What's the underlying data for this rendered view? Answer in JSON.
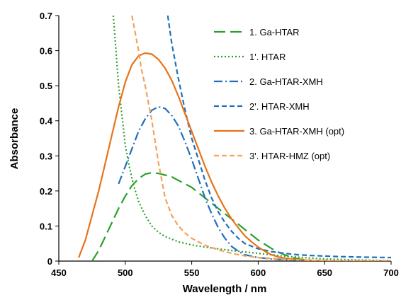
{
  "chart_data": {
    "type": "line",
    "title": "",
    "xlabel": "Wavelength / nm",
    "ylabel": "Absorbance",
    "xlim": [
      450,
      700
    ],
    "ylim": [
      0,
      0.7
    ],
    "x_ticks": [
      450,
      500,
      550,
      600,
      650,
      700
    ],
    "y_ticks": [
      0,
      0.1,
      0.2,
      0.3,
      0.4,
      0.5,
      0.6,
      0.7
    ],
    "x_tick_labels": [
      "450",
      "500",
      "550",
      "600",
      "650",
      "700"
    ],
    "y_tick_labels": [
      "0",
      "0.1",
      "0.2",
      "0.3",
      "0.4",
      "0.5",
      "0.6",
      "0.7"
    ],
    "grid": false,
    "legend_position": "top-right",
    "series": [
      {
        "name": "1. Ga-HTAR",
        "color": "#2ca02c",
        "style": "long-dash",
        "x": [
          475,
          480,
          485,
          490,
          495,
          500,
          505,
          510,
          515,
          520,
          525,
          530,
          535,
          540,
          545,
          550,
          555,
          560,
          565,
          570,
          575,
          580,
          585,
          590,
          595,
          600,
          605,
          610,
          615,
          620,
          625,
          630,
          640,
          650,
          660,
          670,
          680,
          690,
          700
        ],
        "y": [
          0.0,
          0.03,
          0.07,
          0.11,
          0.15,
          0.185,
          0.215,
          0.235,
          0.248,
          0.252,
          0.25,
          0.245,
          0.24,
          0.23,
          0.22,
          0.21,
          0.195,
          0.18,
          0.165,
          0.15,
          0.135,
          0.12,
          0.105,
          0.09,
          0.075,
          0.06,
          0.048,
          0.036,
          0.026,
          0.018,
          0.011,
          0.006,
          0.002,
          0.0,
          0.0,
          0.0,
          0.0,
          0.0,
          0.0
        ]
      },
      {
        "name": "1'. HTAR",
        "color": "#2ca02c",
        "style": "dotted",
        "x": [
          491,
          493,
          495,
          498,
          500,
          503,
          506,
          510,
          515,
          520,
          525,
          530,
          540,
          550,
          560,
          570,
          580,
          590,
          600,
          610,
          620,
          630,
          650,
          675,
          700
        ],
        "y": [
          0.7,
          0.6,
          0.5,
          0.4,
          0.33,
          0.27,
          0.22,
          0.17,
          0.13,
          0.1,
          0.082,
          0.07,
          0.055,
          0.046,
          0.04,
          0.035,
          0.03,
          0.026,
          0.022,
          0.018,
          0.014,
          0.011,
          0.006,
          0.003,
          0.001
        ]
      },
      {
        "name": "2. Ga-HTAR-XMH",
        "color": "#1f6fbf",
        "style": "dash-dot",
        "x": [
          495,
          500,
          505,
          510,
          515,
          520,
          525,
          530,
          535,
          540,
          545,
          550,
          555,
          560,
          565,
          570,
          575,
          580,
          585,
          590,
          600,
          610,
          620,
          630,
          640
        ],
        "y": [
          0.22,
          0.27,
          0.32,
          0.37,
          0.405,
          0.43,
          0.44,
          0.435,
          0.415,
          0.385,
          0.34,
          0.29,
          0.235,
          0.18,
          0.135,
          0.095,
          0.065,
          0.042,
          0.028,
          0.018,
          0.01,
          0.006,
          0.004,
          0.002,
          0.0
        ]
      },
      {
        "name": "2'. HTAR-XMH",
        "color": "#1f6fbf",
        "style": "dashed",
        "x": [
          532,
          535,
          540,
          545,
          550,
          555,
          560,
          565,
          570,
          575,
          580,
          585,
          590,
          600,
          610,
          620,
          630,
          640,
          660,
          680,
          700
        ],
        "y": [
          0.7,
          0.62,
          0.52,
          0.43,
          0.35,
          0.29,
          0.23,
          0.18,
          0.14,
          0.11,
          0.085,
          0.065,
          0.05,
          0.035,
          0.027,
          0.022,
          0.018,
          0.016,
          0.013,
          0.011,
          0.01
        ]
      },
      {
        "name": "3. Ga-HTAR-XMH (opt)",
        "color": "#e8731a",
        "style": "solid",
        "x": [
          465,
          470,
          475,
          480,
          485,
          490,
          495,
          500,
          505,
          510,
          515,
          520,
          525,
          530,
          535,
          540,
          545,
          550,
          555,
          560,
          565,
          570,
          575,
          580,
          585,
          590,
          595,
          600,
          605,
          610,
          615,
          620,
          630,
          640,
          650,
          660,
          680,
          700
        ],
        "y": [
          0.01,
          0.06,
          0.13,
          0.2,
          0.28,
          0.36,
          0.44,
          0.51,
          0.56,
          0.585,
          0.593,
          0.59,
          0.575,
          0.55,
          0.515,
          0.47,
          0.42,
          0.37,
          0.32,
          0.27,
          0.225,
          0.185,
          0.15,
          0.12,
          0.095,
          0.072,
          0.055,
          0.04,
          0.028,
          0.018,
          0.012,
          0.008,
          0.004,
          0.002,
          0.001,
          0.0,
          0.0,
          0.0
        ]
      },
      {
        "name": "3'. HTAR-HMZ (opt)",
        "color": "#f4a259",
        "style": "dashed",
        "x": [
          505,
          506,
          508,
          510,
          512,
          515,
          518,
          520,
          523,
          525,
          528,
          530,
          535,
          540,
          545,
          550,
          560,
          570,
          580,
          590,
          600,
          620,
          640,
          660,
          680,
          700
        ],
        "y": [
          0.7,
          0.68,
          0.64,
          0.6,
          0.55,
          0.5,
          0.44,
          0.4,
          0.33,
          0.28,
          0.22,
          0.18,
          0.13,
          0.1,
          0.08,
          0.065,
          0.045,
          0.032,
          0.022,
          0.015,
          0.01,
          0.005,
          0.002,
          0.001,
          0.0,
          0.0
        ]
      }
    ]
  }
}
